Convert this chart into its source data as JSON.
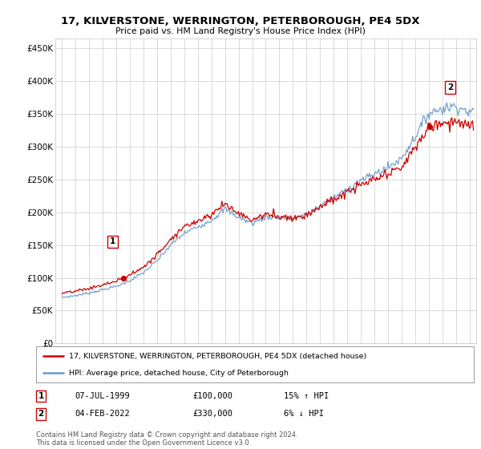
{
  "title": "17, KILVERSTONE, WERRINGTON, PETERBOROUGH, PE4 5DX",
  "subtitle": "Price paid vs. HM Land Registry's House Price Index (HPI)",
  "ylabel_ticks": [
    0,
    50000,
    100000,
    150000,
    200000,
    250000,
    300000,
    350000,
    400000,
    450000
  ],
  "ylabel_labels": [
    "£0",
    "£50K",
    "£100K",
    "£150K",
    "£200K",
    "£250K",
    "£300K",
    "£350K",
    "£400K",
    "£450K"
  ],
  "xlim": [
    1994.5,
    2025.5
  ],
  "ylim": [
    0,
    465000
  ],
  "legend_line1": "17, KILVERSTONE, WERRINGTON, PETERBOROUGH, PE4 5DX (detached house)",
  "legend_line2": "HPI: Average price, detached house, City of Peterborough",
  "sale1_label": "1",
  "sale1_date": "07-JUL-1999",
  "sale1_price": "£100,000",
  "sale1_hpi": "15% ↑ HPI",
  "sale2_label": "2",
  "sale2_date": "04-FEB-2022",
  "sale2_price": "£330,000",
  "sale2_hpi": "6% ↓ HPI",
  "footer": "Contains HM Land Registry data © Crown copyright and database right 2024.\nThis data is licensed under the Open Government Licence v3.0.",
  "line_red": "#cc0000",
  "line_blue": "#6699cc",
  "background_color": "#ffffff",
  "grid_color": "#cccccc",
  "sale1_time": 1999.54,
  "sale1_price_val": 100000,
  "sale2_time": 2022.09,
  "sale2_price_val": 330000
}
